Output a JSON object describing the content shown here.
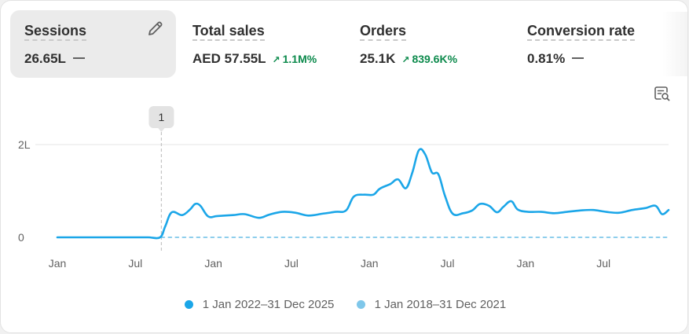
{
  "metrics": [
    {
      "title": "Sessions",
      "value": "26.65L",
      "delta": null,
      "active": true
    },
    {
      "title": "Total sales",
      "value": "AED 57.55L",
      "delta": "1.1M%"
    },
    {
      "title": "Orders",
      "value": "25.1K",
      "delta": "839.6K%"
    },
    {
      "title": "Conversion rate",
      "value": "0.81%",
      "delta": null
    }
  ],
  "colors": {
    "primary": "#1ba6e8",
    "comparison": "#7fc7ea",
    "positive": "#0c8a4c",
    "card": "#ffffff",
    "active_metric": "#ebebeb"
  },
  "icons": {
    "edit": "pencil-icon",
    "explore": "explore-chart-icon"
  },
  "annotation": {
    "label": "1"
  },
  "chart_data": {
    "type": "line",
    "y_ticks": [
      "2L",
      "0"
    ],
    "ylim": [
      0,
      200000
    ],
    "x_tick_labels": [
      "Jan",
      "Jul",
      "Jan",
      "Jul",
      "Jan",
      "Jul",
      "Jan",
      "Jul"
    ],
    "x_tick_months": [
      0,
      6,
      12,
      18,
      24,
      30,
      36,
      42
    ],
    "xlim_months": [
      0,
      47
    ],
    "annotation_month": 8,
    "grid": "horizontal",
    "legend_position": "bottom",
    "series": [
      {
        "name": "1 Jan 2022–31 Dec 2025",
        "color": "#1ba6e8",
        "style": "solid",
        "points": [
          [
            0,
            0
          ],
          [
            1,
            0
          ],
          [
            2,
            0
          ],
          [
            3,
            0
          ],
          [
            4,
            0
          ],
          [
            5,
            0
          ],
          [
            6,
            0
          ],
          [
            7,
            0
          ],
          [
            7.9,
            0
          ],
          [
            8.3,
            24000
          ],
          [
            8.8,
            54000
          ],
          [
            9.6,
            48000
          ],
          [
            10.2,
            60000
          ],
          [
            10.6,
            72000
          ],
          [
            11,
            68000
          ],
          [
            11.6,
            45000
          ],
          [
            12.3,
            46000
          ],
          [
            13.5,
            48000
          ],
          [
            14.4,
            50000
          ],
          [
            15.5,
            42000
          ],
          [
            16.3,
            49000
          ],
          [
            17.3,
            55000
          ],
          [
            18.3,
            53000
          ],
          [
            19.3,
            47000
          ],
          [
            20.4,
            51000
          ],
          [
            21.4,
            55000
          ],
          [
            22.2,
            58000
          ],
          [
            22.8,
            88000
          ],
          [
            23.6,
            92000
          ],
          [
            24.3,
            92000
          ],
          [
            24.8,
            105000
          ],
          [
            25.6,
            115000
          ],
          [
            26.2,
            125000
          ],
          [
            26.8,
            106000
          ],
          [
            27.3,
            140000
          ],
          [
            27.8,
            188000
          ],
          [
            28.3,
            178000
          ],
          [
            28.8,
            140000
          ],
          [
            29.3,
            136000
          ],
          [
            29.8,
            90000
          ],
          [
            30.4,
            51000
          ],
          [
            31.2,
            52000
          ],
          [
            31.9,
            58000
          ],
          [
            32.5,
            72000
          ],
          [
            33.2,
            68000
          ],
          [
            33.8,
            54000
          ],
          [
            34.3,
            66000
          ],
          [
            34.9,
            78000
          ],
          [
            35.4,
            60000
          ],
          [
            36.2,
            55000
          ],
          [
            37.2,
            55000
          ],
          [
            38.2,
            52000
          ],
          [
            39.2,
            55000
          ],
          [
            40.2,
            58000
          ],
          [
            41.2,
            59000
          ],
          [
            42.2,
            55000
          ],
          [
            43.2,
            53000
          ],
          [
            44.2,
            59000
          ],
          [
            45.2,
            63000
          ],
          [
            46,
            68000
          ],
          [
            46.5,
            50000
          ],
          [
            47,
            59000
          ]
        ]
      },
      {
        "name": "1 Jan 2018–31 Dec 2021",
        "color": "#7fc7ea",
        "style": "dashed",
        "points": [
          [
            8,
            0
          ],
          [
            20,
            0
          ],
          [
            35,
            0
          ],
          [
            47,
            0
          ]
        ]
      }
    ]
  }
}
